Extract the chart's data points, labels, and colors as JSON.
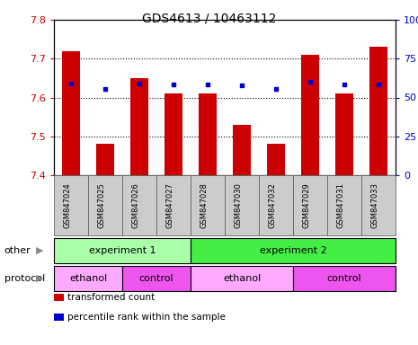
{
  "title": "GDS4613 / 10463112",
  "samples": [
    "GSM847024",
    "GSM847025",
    "GSM847026",
    "GSM847027",
    "GSM847028",
    "GSM847030",
    "GSM847032",
    "GSM847029",
    "GSM847031",
    "GSM847033"
  ],
  "bar_tops": [
    7.72,
    7.48,
    7.65,
    7.61,
    7.61,
    7.53,
    7.48,
    7.71,
    7.61,
    7.73
  ],
  "bar_bottom": 7.4,
  "blue_dots": [
    7.635,
    7.621,
    7.635,
    7.633,
    7.633,
    7.631,
    7.621,
    7.64,
    7.633,
    7.633
  ],
  "bar_color": "#cc0000",
  "dot_color": "#0000cc",
  "ylim": [
    7.4,
    7.8
  ],
  "yticks_left": [
    7.4,
    7.5,
    7.6,
    7.7,
    7.8
  ],
  "yticks_right": [
    0,
    25,
    50,
    75,
    100
  ],
  "ylabel_left_color": "#cc0000",
  "ylabel_right_color": "#0000cc",
  "background_color": "#ffffff",
  "groups_other": [
    {
      "label": "experiment 1",
      "start": 0,
      "end": 3,
      "color": "#aaffaa"
    },
    {
      "label": "experiment 2",
      "start": 4,
      "end": 9,
      "color": "#44ee44"
    }
  ],
  "groups_protocol": [
    {
      "label": "ethanol",
      "start": 0,
      "end": 1,
      "color": "#ffaaff"
    },
    {
      "label": "control",
      "start": 2,
      "end": 3,
      "color": "#ee55ee"
    },
    {
      "label": "ethanol",
      "start": 4,
      "end": 6,
      "color": "#ffaaff"
    },
    {
      "label": "control",
      "start": 7,
      "end": 9,
      "color": "#ee55ee"
    }
  ],
  "legend_items": [
    {
      "label": "transformed count",
      "color": "#cc0000"
    },
    {
      "label": "percentile rank within the sample",
      "color": "#0000cc"
    }
  ],
  "xtick_bg": "#cccccc",
  "xtick_border": "#666666"
}
